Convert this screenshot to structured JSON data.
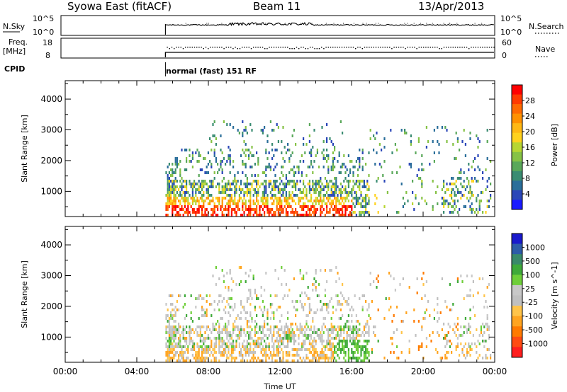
{
  "header": {
    "station": "Syowa East (fitACF)",
    "beam": "Beam 11",
    "date": "13/Apr/2013"
  },
  "strips": {
    "nsky_label": "N.Sky",
    "nsky_ticks": [
      "10^5",
      "10^0"
    ],
    "nsearch_label": "N.Search",
    "nsearch_ticks": [
      "10^5",
      "10^0"
    ],
    "freq_label_1": "Freq.",
    "freq_label_2": "[MHz]",
    "freq_ticks": [
      "18",
      "8"
    ],
    "nave_label": "Nave",
    "nave_ticks": [
      "60",
      "0"
    ],
    "cpid_label": "CPID",
    "cpid_text": "normal (fast) 151 RF"
  },
  "colors": {
    "power": [
      "#1a1aff",
      "#2a46b8",
      "#2a6e9a",
      "#3a8c72",
      "#5aa85a",
      "#86c246",
      "#b8d632",
      "#ffd21e",
      "#ffb814",
      "#ff9100",
      "#ff6a00",
      "#ff3a00",
      "#ff0000"
    ],
    "velocity": [
      "#ff1e1e",
      "#ff4b12",
      "#ff7a00",
      "#ffa420",
      "#ffc44a",
      "#c0c0c0",
      "#c8c8c8",
      "#6fcf3a",
      "#3faa3a",
      "#3a8a6a",
      "#2e5ca8",
      "#1a1acc"
    ]
  },
  "chart_data": [
    {
      "type": "heatmap",
      "name": "power",
      "ylabel": "Slant Range [km]",
      "xlabel": "",
      "x_ticks": [
        "00:00",
        "04:00",
        "08:00",
        "12:00",
        "16:00",
        "20:00",
        "00:00"
      ],
      "y_ticks": [
        1000,
        2000,
        3000,
        4000
      ],
      "x_range_hours": [
        0,
        24
      ],
      "y_range_km": [
        180,
        4600
      ],
      "colorbar_label": "Power [dB]",
      "colorbar_ticks": [
        "4",
        "8",
        "12",
        "16",
        "20",
        "24",
        "28"
      ],
      "colorbar_range": [
        0,
        32
      ],
      "data_start_hour": 5.6
    },
    {
      "type": "heatmap",
      "name": "velocity",
      "ylabel": "Slant Range [km]",
      "xlabel": "Time UT",
      "x_ticks": [
        "00:00",
        "04:00",
        "08:00",
        "12:00",
        "16:00",
        "20:00",
        "00:00"
      ],
      "y_ticks": [
        1000,
        2000,
        3000,
        4000
      ],
      "x_range_hours": [
        0,
        24
      ],
      "y_range_km": [
        180,
        4600
      ],
      "colorbar_label": "Velocity [m s^-1]",
      "colorbar_ticks": [
        "1000",
        "500",
        "100",
        "25",
        "-25",
        "-100",
        "-500",
        "-1000"
      ],
      "data_start_hour": 5.6
    }
  ]
}
